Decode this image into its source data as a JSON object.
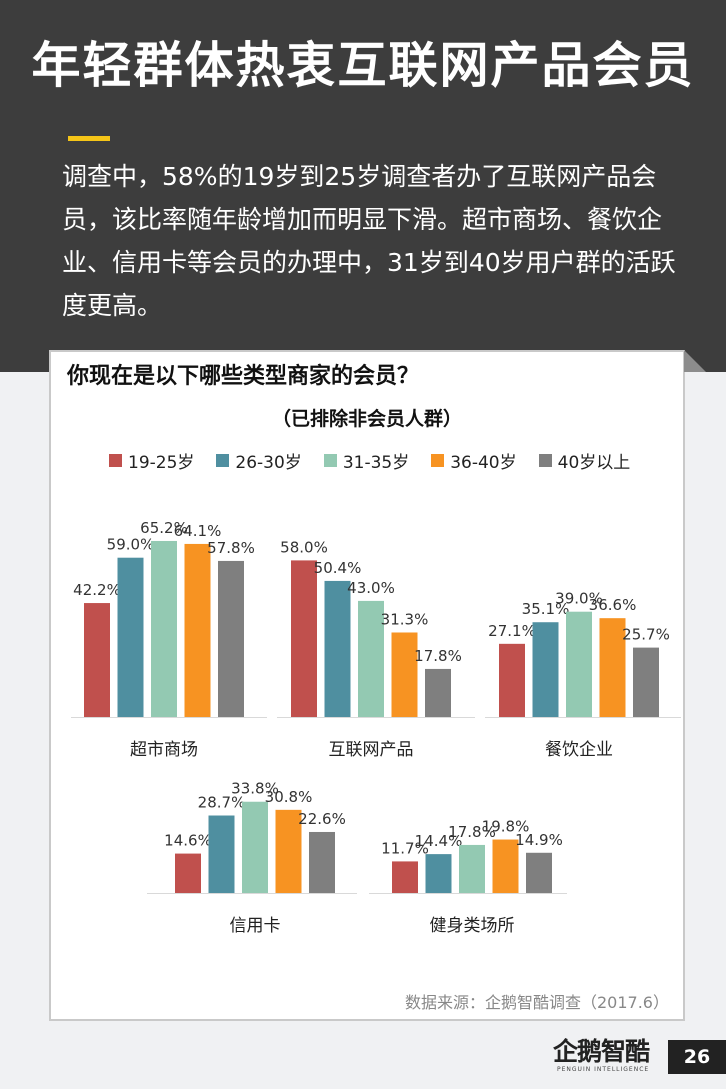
{
  "header": {
    "title": "年轻群体热衷互联网产品会员",
    "intro": "调查中，58%的19岁到25岁调查者办了互联网产品会员，该比率随年龄增加而明显下滑。超市商场、餐饮企业、信用卡等会员的办理中，31岁到40岁用户群的活跃度更高。"
  },
  "chart_data": {
    "type": "bar",
    "title": "你现在是以下哪些类型商家的会员？",
    "subtitle": "（已排除非会员人群）",
    "legend_position": "top",
    "categories": [
      "超市商场",
      "互联网产品",
      "餐饮企业",
      "信用卡",
      "健身类场所"
    ],
    "series": [
      {
        "name": "19-25岁",
        "color": "#c0504d",
        "values": [
          42.2,
          58.0,
          27.1,
          14.6,
          11.7
        ],
        "labels": [
          "42.2%",
          "58.0%",
          "27.1%",
          "14.6%",
          "11.7%"
        ]
      },
      {
        "name": "26-30岁",
        "color": "#4f8fa0",
        "values": [
          59.0,
          50.4,
          35.1,
          28.7,
          14.4
        ],
        "labels": [
          "59.0%",
          "50.4%",
          "35.1%",
          "28.7%",
          "14.4%"
        ]
      },
      {
        "name": "31-35岁",
        "color": "#93c9b2",
        "values": [
          65.2,
          43.0,
          39.0,
          33.8,
          17.8
        ],
        "labels": [
          "65.2%",
          "43.0%",
          "39.0%",
          "33.8%",
          "17.8%"
        ]
      },
      {
        "name": "36-40岁",
        "color": "#f79322",
        "values": [
          64.1,
          31.3,
          36.6,
          30.8,
          19.8
        ],
        "labels": [
          "64.1%",
          "31.3%",
          "36.6%",
          "30.8%",
          "19.8%"
        ]
      },
      {
        "name": "40岁以上",
        "color": "#7f7f7f",
        "values": [
          57.8,
          17.8,
          25.7,
          22.6,
          14.9
        ],
        "labels": [
          "57.8%",
          "17.8%",
          "25.7%",
          "22.6%",
          "14.9%"
        ]
      }
    ],
    "source": "数据来源：企鹅智酷调查（2017.6）"
  },
  "footer": {
    "logo_text": "企鹅智酷",
    "logo_subtext": "PENGUIN INTELLIGENCE",
    "page_number": "26"
  }
}
